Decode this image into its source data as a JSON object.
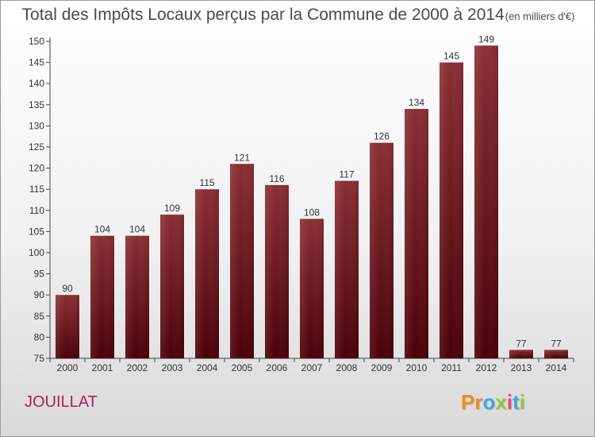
{
  "title": {
    "main": "Total des Impôts Locaux perçus par la Commune de 2000 à 2014",
    "unit": "(en milliers d'€)"
  },
  "commune": "JOUILLAT",
  "brand": {
    "letters": [
      "P",
      "r",
      "o",
      "x",
      "i",
      "t",
      "i"
    ],
    "colors": [
      "#f08a1c",
      "#f08a1c",
      "#3fa8e0",
      "#9bc43a",
      "#e84a6a",
      "#3fa8e0",
      "#9bc43a"
    ]
  },
  "colors": {
    "bar_top": "#8a2e34",
    "bar_bottom": "#4a0008",
    "axis": "#444444",
    "text": "#333333"
  },
  "chart_data": {
    "type": "bar",
    "title": "Total des Impôts Locaux perçus par la Commune de 2000 à 2014",
    "xlabel": "",
    "ylabel": "",
    "categories": [
      "2000",
      "2001",
      "2002",
      "2003",
      "2004",
      "2005",
      "2006",
      "2007",
      "2008",
      "2009",
      "2010",
      "2011",
      "2012",
      "2013",
      "2014"
    ],
    "values": [
      90,
      104,
      104,
      109,
      115,
      121,
      116,
      108,
      117,
      126,
      134,
      145,
      149,
      77,
      77
    ],
    "ylim": [
      75,
      150
    ],
    "yticks": [
      75,
      80,
      85,
      90,
      95,
      100,
      105,
      110,
      115,
      120,
      125,
      130,
      135,
      140,
      145,
      150
    ],
    "grid": false
  }
}
